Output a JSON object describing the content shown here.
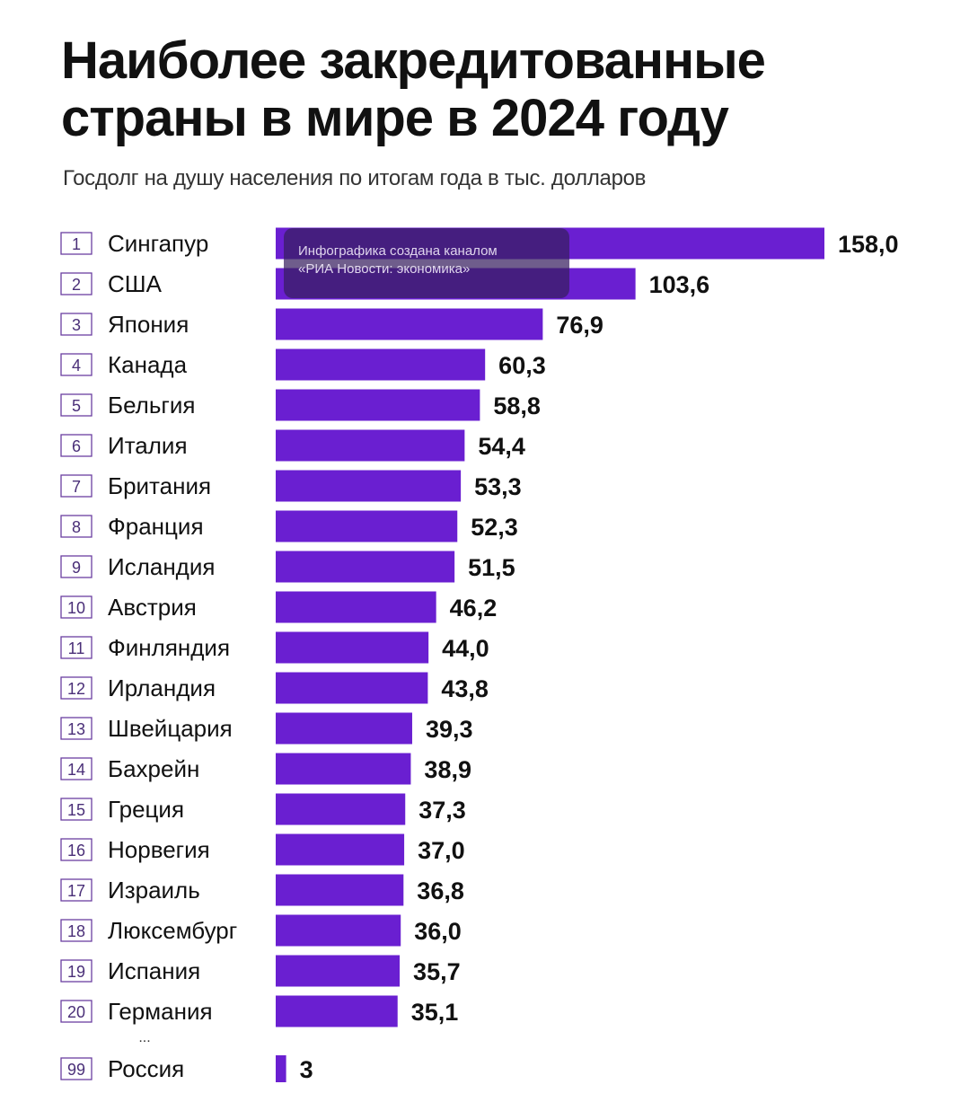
{
  "title_line1": "Наиболее закредитованные",
  "title_line2": "страны в мире в 2024 году",
  "subtitle": "Госдолг на душу населения по итогам года в тыс. долларов",
  "watermark": {
    "line1": "Инфографика создана каналом",
    "line2": "«РИА Новости: экономика»"
  },
  "ellipsis": "...",
  "colors": {
    "bar": "#6a1fd1",
    "rank_border": "#6b3fa0"
  },
  "chart_data": {
    "type": "bar",
    "orientation": "horizontal",
    "title": "Наиболее закредитованные страны в мире в 2024 году",
    "subtitle": "Госдолг на душу населения по итогам года в тыс. долларов",
    "ranks": [
      "1",
      "2",
      "3",
      "4",
      "5",
      "6",
      "7",
      "8",
      "9",
      "10",
      "11",
      "12",
      "13",
      "14",
      "15",
      "16",
      "17",
      "18",
      "19",
      "20",
      "99"
    ],
    "categories": [
      "Сингапур",
      "США",
      "Япония",
      "Канада",
      "Бельгия",
      "Италия",
      "Британия",
      "Франция",
      "Исландия",
      "Австрия",
      "Финляндия",
      "Ирландия",
      "Швейцария",
      "Бахрейн",
      "Греция",
      "Норвегия",
      "Израиль",
      "Люксембург",
      "Испания",
      "Германия",
      "Россия"
    ],
    "values": [
      158.0,
      103.6,
      76.9,
      60.3,
      58.8,
      54.4,
      53.3,
      52.3,
      51.5,
      46.2,
      44.0,
      43.8,
      39.3,
      38.9,
      37.3,
      37.0,
      36.8,
      36.0,
      35.7,
      35.1,
      3
    ],
    "value_labels": [
      "158,0",
      "103,6",
      "76,9",
      "60,3",
      "58,8",
      "54,4",
      "53,3",
      "52,3",
      "51,5",
      "46,2",
      "44,0",
      "43,8",
      "39,3",
      "38,9",
      "37,3",
      "37,0",
      "36,8",
      "36,0",
      "35,7",
      "35,1",
      "3"
    ],
    "xlim": [
      0,
      158
    ],
    "grid": false,
    "legend": "none"
  }
}
